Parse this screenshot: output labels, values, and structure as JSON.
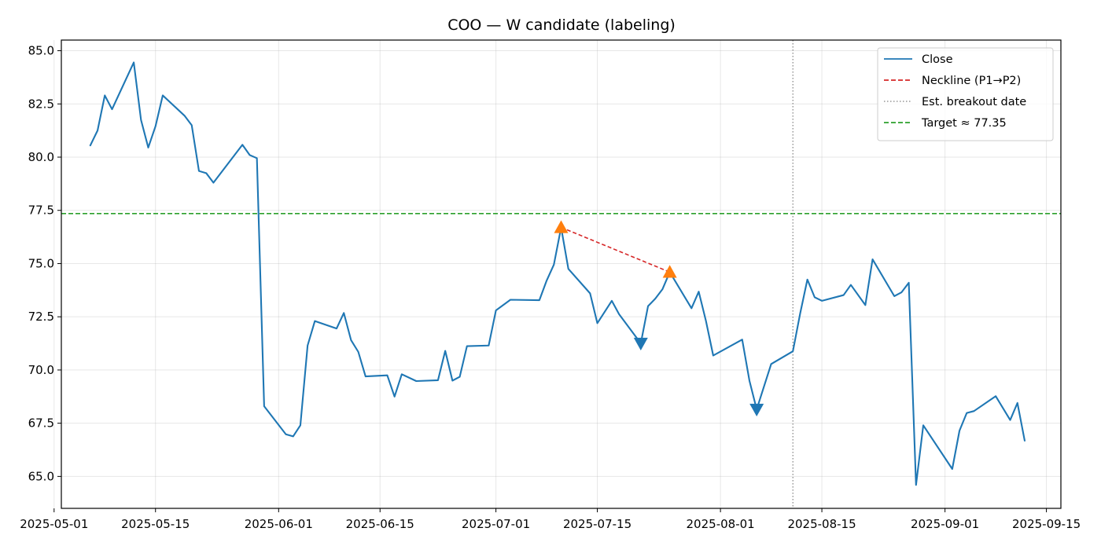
{
  "chart_data": {
    "type": "line",
    "title": "COO — W candidate (labeling)",
    "xlabel": "",
    "ylabel": "",
    "xlim": [
      "2025-05-02",
      "2025-09-17"
    ],
    "ylim": [
      63.5,
      85.5
    ],
    "x_ticks": [
      "2025-05-01",
      "2025-05-15",
      "2025-06-01",
      "2025-06-15",
      "2025-07-01",
      "2025-07-15",
      "2025-08-01",
      "2025-08-15",
      "2025-09-01",
      "2025-09-15"
    ],
    "y_ticks": [
      65.0,
      67.5,
      70.0,
      72.5,
      75.0,
      77.5,
      80.0,
      82.5,
      85.0
    ],
    "grid": true,
    "legend_position": "top-right",
    "series": [
      {
        "name": "Close",
        "color": "#1f77b4",
        "points": [
          [
            "2025-05-06",
            80.55
          ],
          [
            "2025-05-07",
            81.25
          ],
          [
            "2025-05-08",
            82.9
          ],
          [
            "2025-05-09",
            82.25
          ],
          [
            "2025-05-12",
            84.45
          ],
          [
            "2025-05-13",
            81.75
          ],
          [
            "2025-05-14",
            80.45
          ],
          [
            "2025-05-15",
            81.45
          ],
          [
            "2025-05-16",
            82.9
          ],
          [
            "2025-05-19",
            81.95
          ],
          [
            "2025-05-20",
            81.5
          ],
          [
            "2025-05-21",
            79.35
          ],
          [
            "2025-05-22",
            79.25
          ],
          [
            "2025-05-23",
            78.8
          ],
          [
            "2025-05-27",
            80.58
          ],
          [
            "2025-05-28",
            80.1
          ],
          [
            "2025-05-29",
            79.95
          ],
          [
            "2025-05-30",
            68.3
          ],
          [
            "2025-06-02",
            66.98
          ],
          [
            "2025-06-03",
            66.88
          ],
          [
            "2025-06-04",
            67.4
          ],
          [
            "2025-06-05",
            71.15
          ],
          [
            "2025-06-06",
            72.3
          ],
          [
            "2025-06-09",
            71.95
          ],
          [
            "2025-06-10",
            72.68
          ],
          [
            "2025-06-11",
            71.4
          ],
          [
            "2025-06-12",
            70.85
          ],
          [
            "2025-06-13",
            69.7
          ],
          [
            "2025-06-16",
            69.75
          ],
          [
            "2025-06-17",
            68.75
          ],
          [
            "2025-06-18",
            69.8
          ],
          [
            "2025-06-20",
            69.48
          ],
          [
            "2025-06-23",
            69.52
          ],
          [
            "2025-06-24",
            70.9
          ],
          [
            "2025-06-25",
            69.5
          ],
          [
            "2025-06-26",
            69.68
          ],
          [
            "2025-06-27",
            71.12
          ],
          [
            "2025-06-30",
            71.15
          ],
          [
            "2025-07-01",
            72.8
          ],
          [
            "2025-07-03",
            73.3
          ],
          [
            "2025-07-07",
            73.28
          ],
          [
            "2025-07-08",
            74.2
          ],
          [
            "2025-07-09",
            74.95
          ],
          [
            "2025-07-10",
            76.7
          ],
          [
            "2025-07-11",
            74.75
          ],
          [
            "2025-07-14",
            73.6
          ],
          [
            "2025-07-15",
            72.2
          ],
          [
            "2025-07-17",
            73.25
          ],
          [
            "2025-07-18",
            72.62
          ],
          [
            "2025-07-21",
            71.25
          ],
          [
            "2025-07-22",
            73.0
          ],
          [
            "2025-07-23",
            73.35
          ],
          [
            "2025-07-24",
            73.8
          ],
          [
            "2025-07-25",
            74.6
          ],
          [
            "2025-07-28",
            72.9
          ],
          [
            "2025-07-29",
            73.68
          ],
          [
            "2025-07-30",
            72.3
          ],
          [
            "2025-07-31",
            70.68
          ],
          [
            "2025-08-04",
            71.43
          ],
          [
            "2025-08-05",
            69.5
          ],
          [
            "2025-08-06",
            68.15
          ],
          [
            "2025-08-08",
            70.28
          ],
          [
            "2025-08-11",
            70.88
          ],
          [
            "2025-08-12",
            72.65
          ],
          [
            "2025-08-13",
            74.25
          ],
          [
            "2025-08-14",
            73.42
          ],
          [
            "2025-08-15",
            73.25
          ],
          [
            "2025-08-18",
            73.52
          ],
          [
            "2025-08-19",
            74.0
          ],
          [
            "2025-08-21",
            73.05
          ],
          [
            "2025-08-22",
            75.2
          ],
          [
            "2025-08-25",
            73.47
          ],
          [
            "2025-08-26",
            73.65
          ],
          [
            "2025-08-27",
            74.1
          ],
          [
            "2025-08-28",
            64.6
          ],
          [
            "2025-08-29",
            67.4
          ],
          [
            "2025-09-02",
            65.35
          ],
          [
            "2025-09-03",
            67.15
          ],
          [
            "2025-09-04",
            67.98
          ],
          [
            "2025-09-05",
            68.07
          ],
          [
            "2025-09-08",
            68.77
          ],
          [
            "2025-09-10",
            67.65
          ],
          [
            "2025-09-11",
            68.45
          ],
          [
            "2025-09-12",
            66.68
          ]
        ]
      }
    ],
    "peaks": [
      {
        "label": "P1",
        "date": "2025-07-10",
        "value": 76.7,
        "marker": "triangle-up",
        "color": "#ff7f0e"
      },
      {
        "label": "P2",
        "date": "2025-07-25",
        "value": 74.6,
        "marker": "triangle-up",
        "color": "#ff7f0e"
      }
    ],
    "troughs": [
      {
        "date": "2025-07-21",
        "value": 71.25,
        "marker": "triangle-down",
        "color": "#1f77b4"
      },
      {
        "date": "2025-08-06",
        "value": 68.15,
        "marker": "triangle-down",
        "color": "#1f77b4"
      }
    ],
    "neckline": {
      "from": [
        "2025-07-10",
        76.7
      ],
      "to": [
        "2025-07-25",
        74.6
      ],
      "color": "#d62728",
      "style": "dashed"
    },
    "breakout_date": {
      "date": "2025-08-11",
      "color": "#808080",
      "style": "dotted"
    },
    "target": {
      "value": 77.35,
      "color": "#2ca02c",
      "style": "dashed"
    },
    "legend": [
      {
        "label": "Close",
        "color": "#1f77b4",
        "style": "solid"
      },
      {
        "label": "Neckline (P1→P2)",
        "color": "#d62728",
        "style": "dashed"
      },
      {
        "label": "Est. breakout date",
        "color": "#808080",
        "style": "dotted"
      },
      {
        "label": "Target ≈ 77.35",
        "color": "#2ca02c",
        "style": "dashed"
      }
    ]
  }
}
